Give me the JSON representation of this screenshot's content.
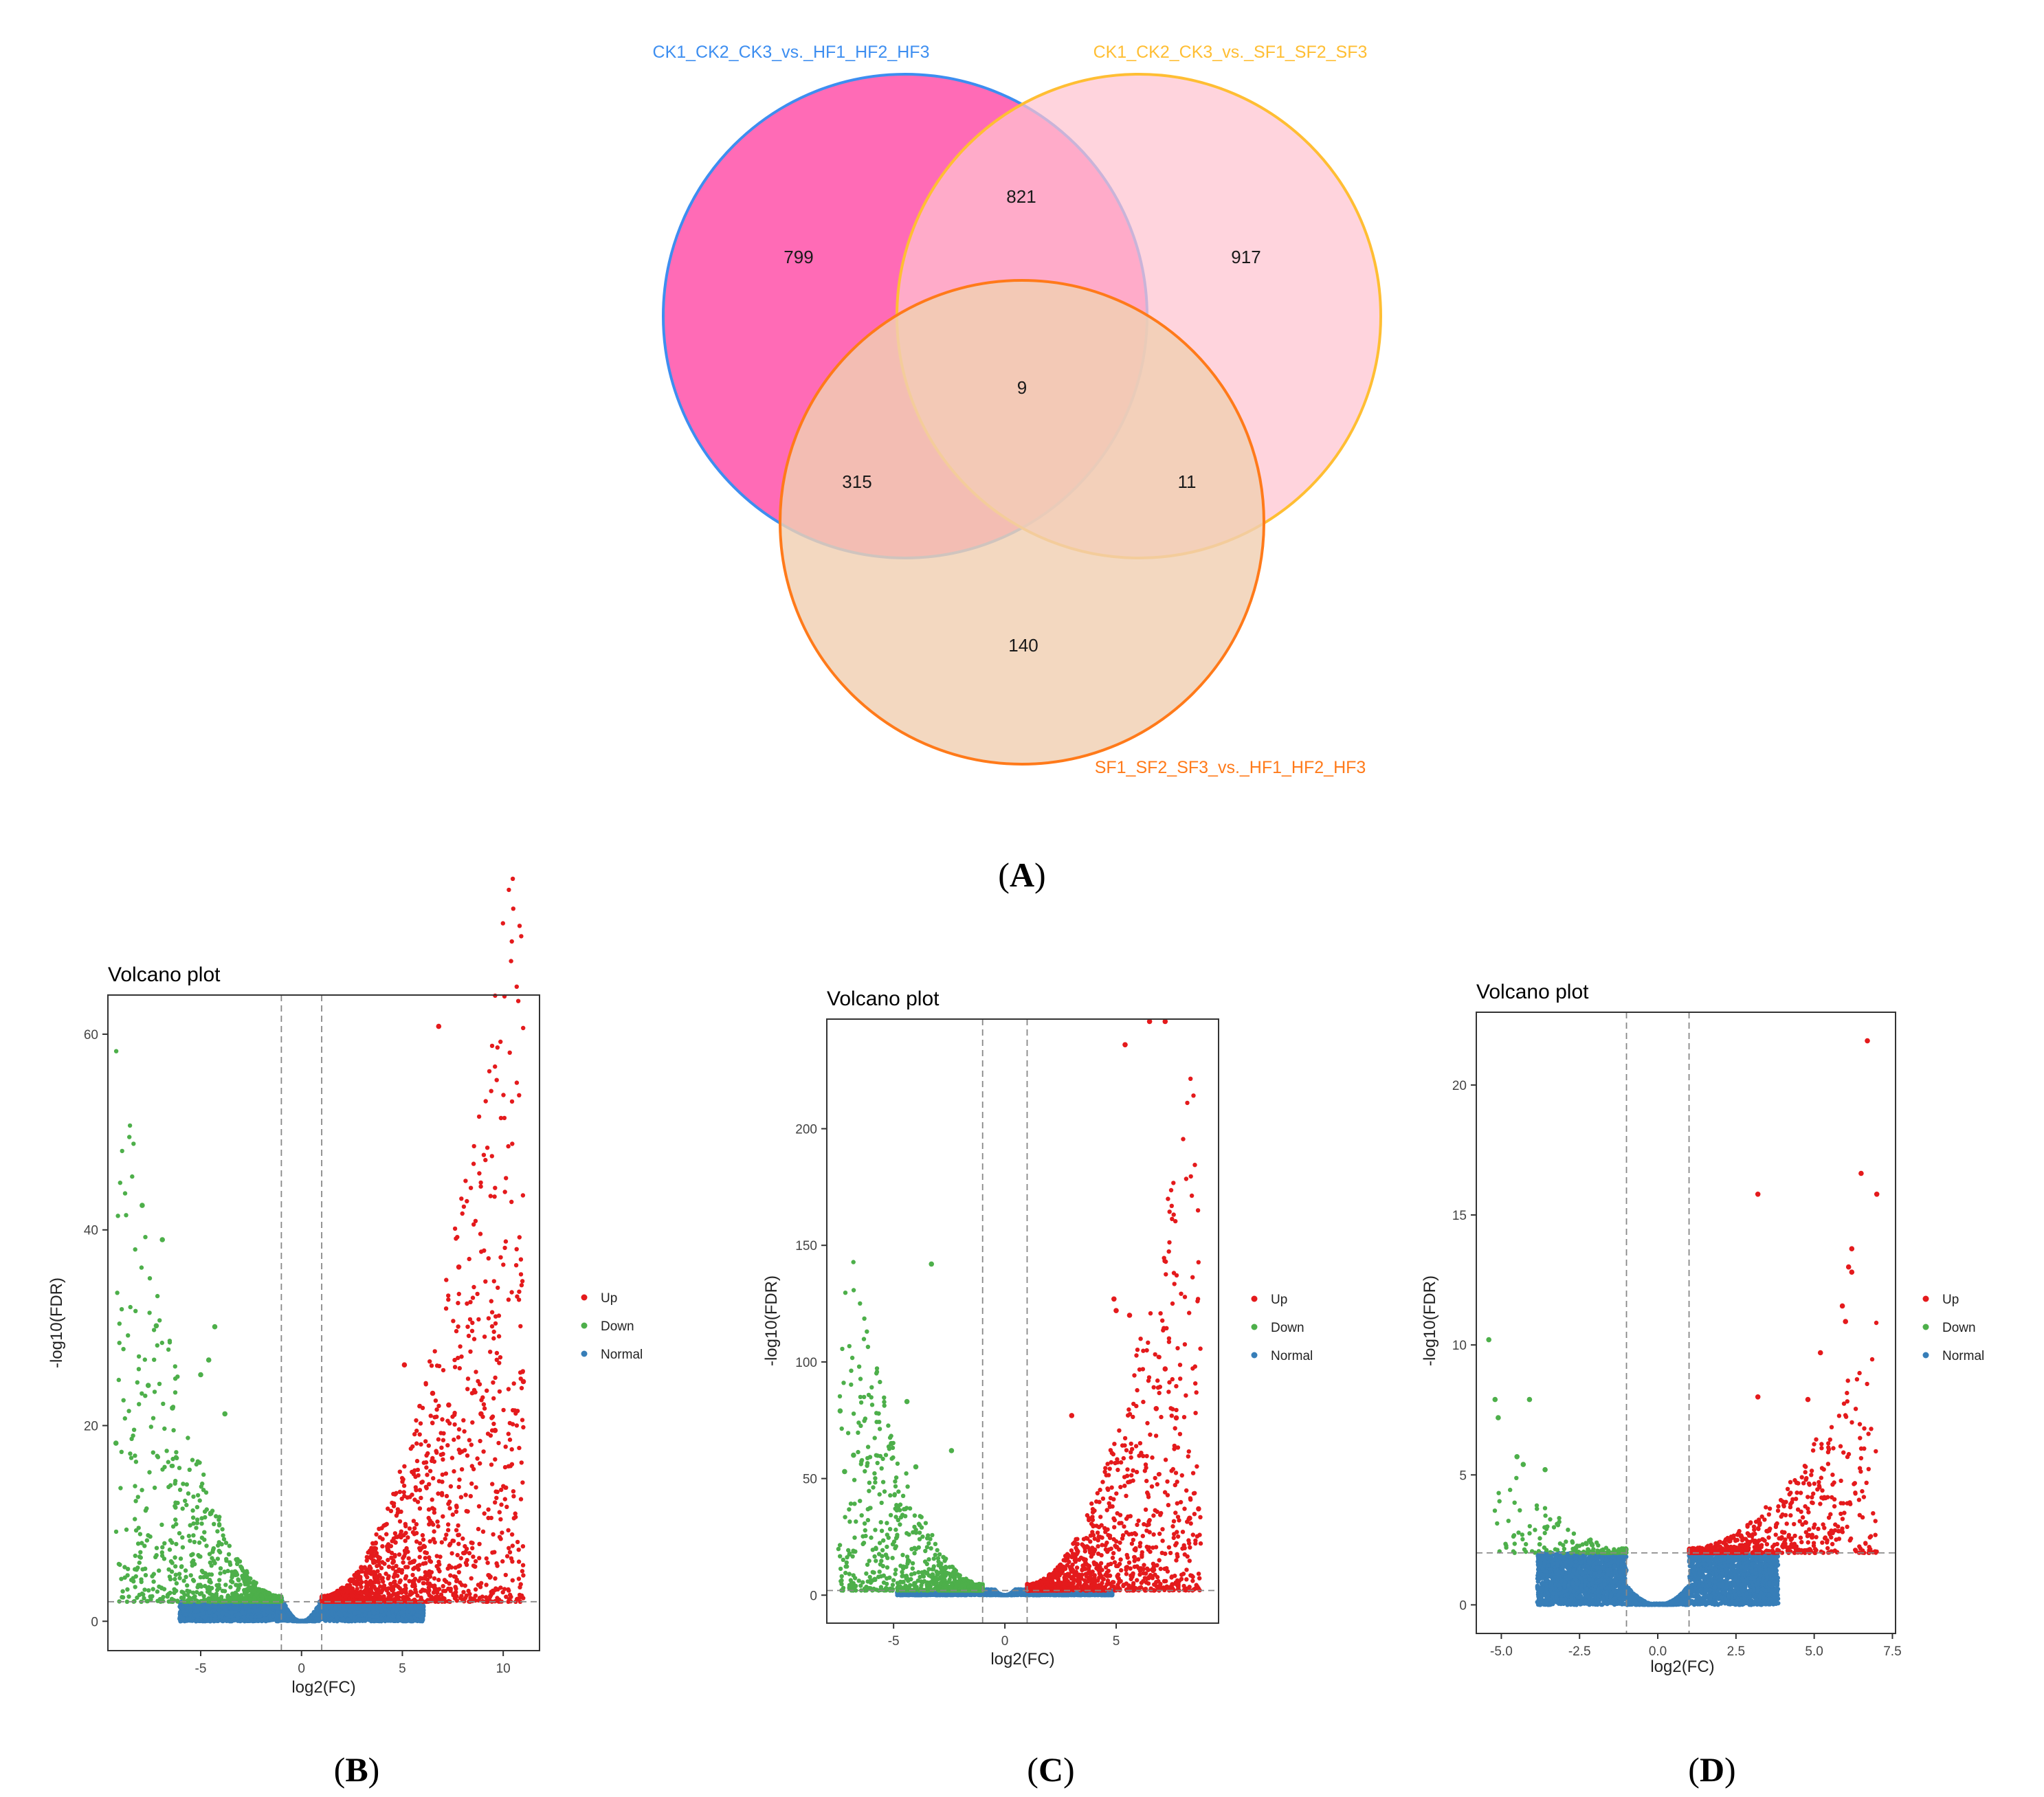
{
  "venn": {
    "panel_label": "A",
    "sets": [
      {
        "name": "CK1_CK2_CK3_vs._HF1_HF2_HF3",
        "color": "#3D8EF0",
        "fill": "#FF5EB0"
      },
      {
        "name": "CK1_CK2_CK3_vs._SF1_SF2_SF3",
        "color": "#FFBE33",
        "fill": "#FFC3D0"
      },
      {
        "name": "SF1_SF2_SF3_vs._HF1_HF2_HF3",
        "color": "#FF7A1A",
        "fill": "#F0CFB2"
      }
    ],
    "regions": {
      "only_a": "799",
      "only_b": "917",
      "only_c": "140",
      "a_b": "821",
      "a_c": "315",
      "b_c": "11",
      "a_b_c": "9"
    }
  },
  "chart_data": [
    {
      "panel": "B",
      "type": "scatter",
      "title": "Volcano plot",
      "xlabel": "log2(FC)",
      "ylabel": "-log10(FDR)",
      "xlim": [
        -9.6,
        11.8
      ],
      "ylim": [
        -3,
        64
      ],
      "xticks": [
        -5,
        0,
        5,
        10
      ],
      "yticks": [
        0,
        20,
        40,
        60
      ],
      "xtick_labels": [
        "-5",
        "0",
        "5",
        "10"
      ],
      "ytick_labels": [
        "0",
        "20",
        "40",
        "60"
      ],
      "fc_threshold": 1,
      "fdr_threshold": 2,
      "n_up": 1700,
      "n_down": 900,
      "n_normal": 5000,
      "max_down_x": -9.2,
      "max_up_x": 11,
      "curve_scale": 1.15,
      "legend": [
        {
          "label": "Up",
          "color": "#E41A1C"
        },
        {
          "label": "Down",
          "color": "#4DAF4A"
        },
        {
          "label": "Normal",
          "color": "#377EB8"
        }
      ],
      "outliers_up": [
        [
          6.8,
          60.8
        ],
        [
          7.8,
          36.2
        ],
        [
          11,
          24.5
        ],
        [
          5.1,
          26.2
        ],
        [
          6.5,
          23.3
        ],
        [
          8.9,
          21.2
        ],
        [
          9.6,
          19.5
        ],
        [
          7.3,
          22.1
        ]
      ],
      "outliers_down": [
        [
          -7.9,
          42.5
        ],
        [
          -6.9,
          39.0
        ],
        [
          -7.2,
          30.2
        ],
        [
          -4.3,
          30.1
        ],
        [
          -5.0,
          25.2
        ],
        [
          -4.6,
          26.7
        ],
        [
          -3.8,
          21.2
        ],
        [
          -7.6,
          24.1
        ],
        [
          -9.2,
          18.2
        ],
        [
          -6.4,
          21.8
        ]
      ]
    },
    {
      "panel": "C",
      "type": "scatter",
      "title": "Volcano plot",
      "xlabel": "log2(FC)",
      "ylabel": "-log10(FDR)",
      "xlim": [
        -8.0,
        9.6
      ],
      "ylim": [
        -12,
        247
      ],
      "xticks": [
        -5,
        0,
        5
      ],
      "yticks": [
        0,
        50,
        100,
        150,
        200
      ],
      "xtick_labels": [
        "-5",
        "0",
        "5"
      ],
      "ytick_labels": [
        "0",
        "50",
        "100",
        "150",
        "200"
      ],
      "fc_threshold": 1,
      "fdr_threshold": 2,
      "n_up": 1300,
      "n_down": 900,
      "n_normal": 4500,
      "max_down_x": -7.5,
      "max_up_x": 8.8,
      "curve_scale": 5.5,
      "legend": [
        {
          "label": "Up",
          "color": "#E41A1C"
        },
        {
          "label": "Down",
          "color": "#4DAF4A"
        },
        {
          "label": "Normal",
          "color": "#377EB8"
        }
      ],
      "outliers_up": [
        [
          7.2,
          246
        ],
        [
          6.5,
          246
        ],
        [
          5.4,
          236
        ],
        [
          4.9,
          127
        ],
        [
          5.0,
          122
        ],
        [
          5.6,
          120
        ],
        [
          7.2,
          97
        ],
        [
          6.8,
          80
        ],
        [
          7.7,
          76
        ],
        [
          3.0,
          77
        ],
        [
          8.7,
          37
        ],
        [
          8.3,
          33
        ]
      ],
      "outliers_down": [
        [
          -3.3,
          142
        ],
        [
          -4.4,
          83
        ],
        [
          -7.4,
          79
        ],
        [
          -5.1,
          65
        ],
        [
          -6.8,
          60
        ],
        [
          -2.4,
          62
        ],
        [
          -7.2,
          53
        ],
        [
          -4.0,
          55
        ]
      ]
    },
    {
      "panel": "D",
      "type": "scatter",
      "title": "Volcano plot",
      "xlabel": "log2(FC)",
      "ylabel": "-log10(FDR)",
      "xlim": [
        -5.8,
        7.6
      ],
      "ylim": [
        -1.1,
        22.8
      ],
      "xticks": [
        -5.0,
        -2.5,
        0.0,
        2.5,
        5.0,
        7.5
      ],
      "yticks": [
        0,
        5,
        10,
        15,
        20
      ],
      "xtick_labels": [
        "-5.0",
        "-2.5",
        "0.0",
        "2.5",
        "5.0",
        "7.5"
      ],
      "ytick_labels": [
        "0",
        "5",
        "10",
        "15",
        "20"
      ],
      "fc_threshold": 1,
      "fdr_threshold": 2,
      "n_up": 700,
      "n_down": 150,
      "n_normal": 4000,
      "max_down_x": -5.3,
      "max_up_x": 7,
      "curve_scale": 0.35,
      "legend": [
        {
          "label": "Up",
          "color": "#E41A1C"
        },
        {
          "label": "Down",
          "color": "#4DAF4A"
        },
        {
          "label": "Normal",
          "color": "#377EB8"
        }
      ],
      "outliers_up": [
        [
          6.7,
          21.7
        ],
        [
          6.5,
          16.6
        ],
        [
          7.0,
          15.8
        ],
        [
          3.2,
          15.8
        ],
        [
          6.2,
          13.7
        ],
        [
          6.1,
          13.0
        ],
        [
          5.9,
          11.5
        ],
        [
          6.2,
          12.8
        ],
        [
          5.2,
          9.7
        ],
        [
          4.8,
          7.9
        ],
        [
          3.2,
          8.0
        ],
        [
          6.0,
          10.9
        ]
      ],
      "outliers_down": [
        [
          -5.4,
          10.2
        ],
        [
          -5.2,
          7.9
        ],
        [
          -4.1,
          7.9
        ],
        [
          -5.1,
          7.2
        ],
        [
          -4.5,
          5.7
        ],
        [
          -3.6,
          5.2
        ],
        [
          -4.3,
          5.4
        ]
      ]
    }
  ]
}
